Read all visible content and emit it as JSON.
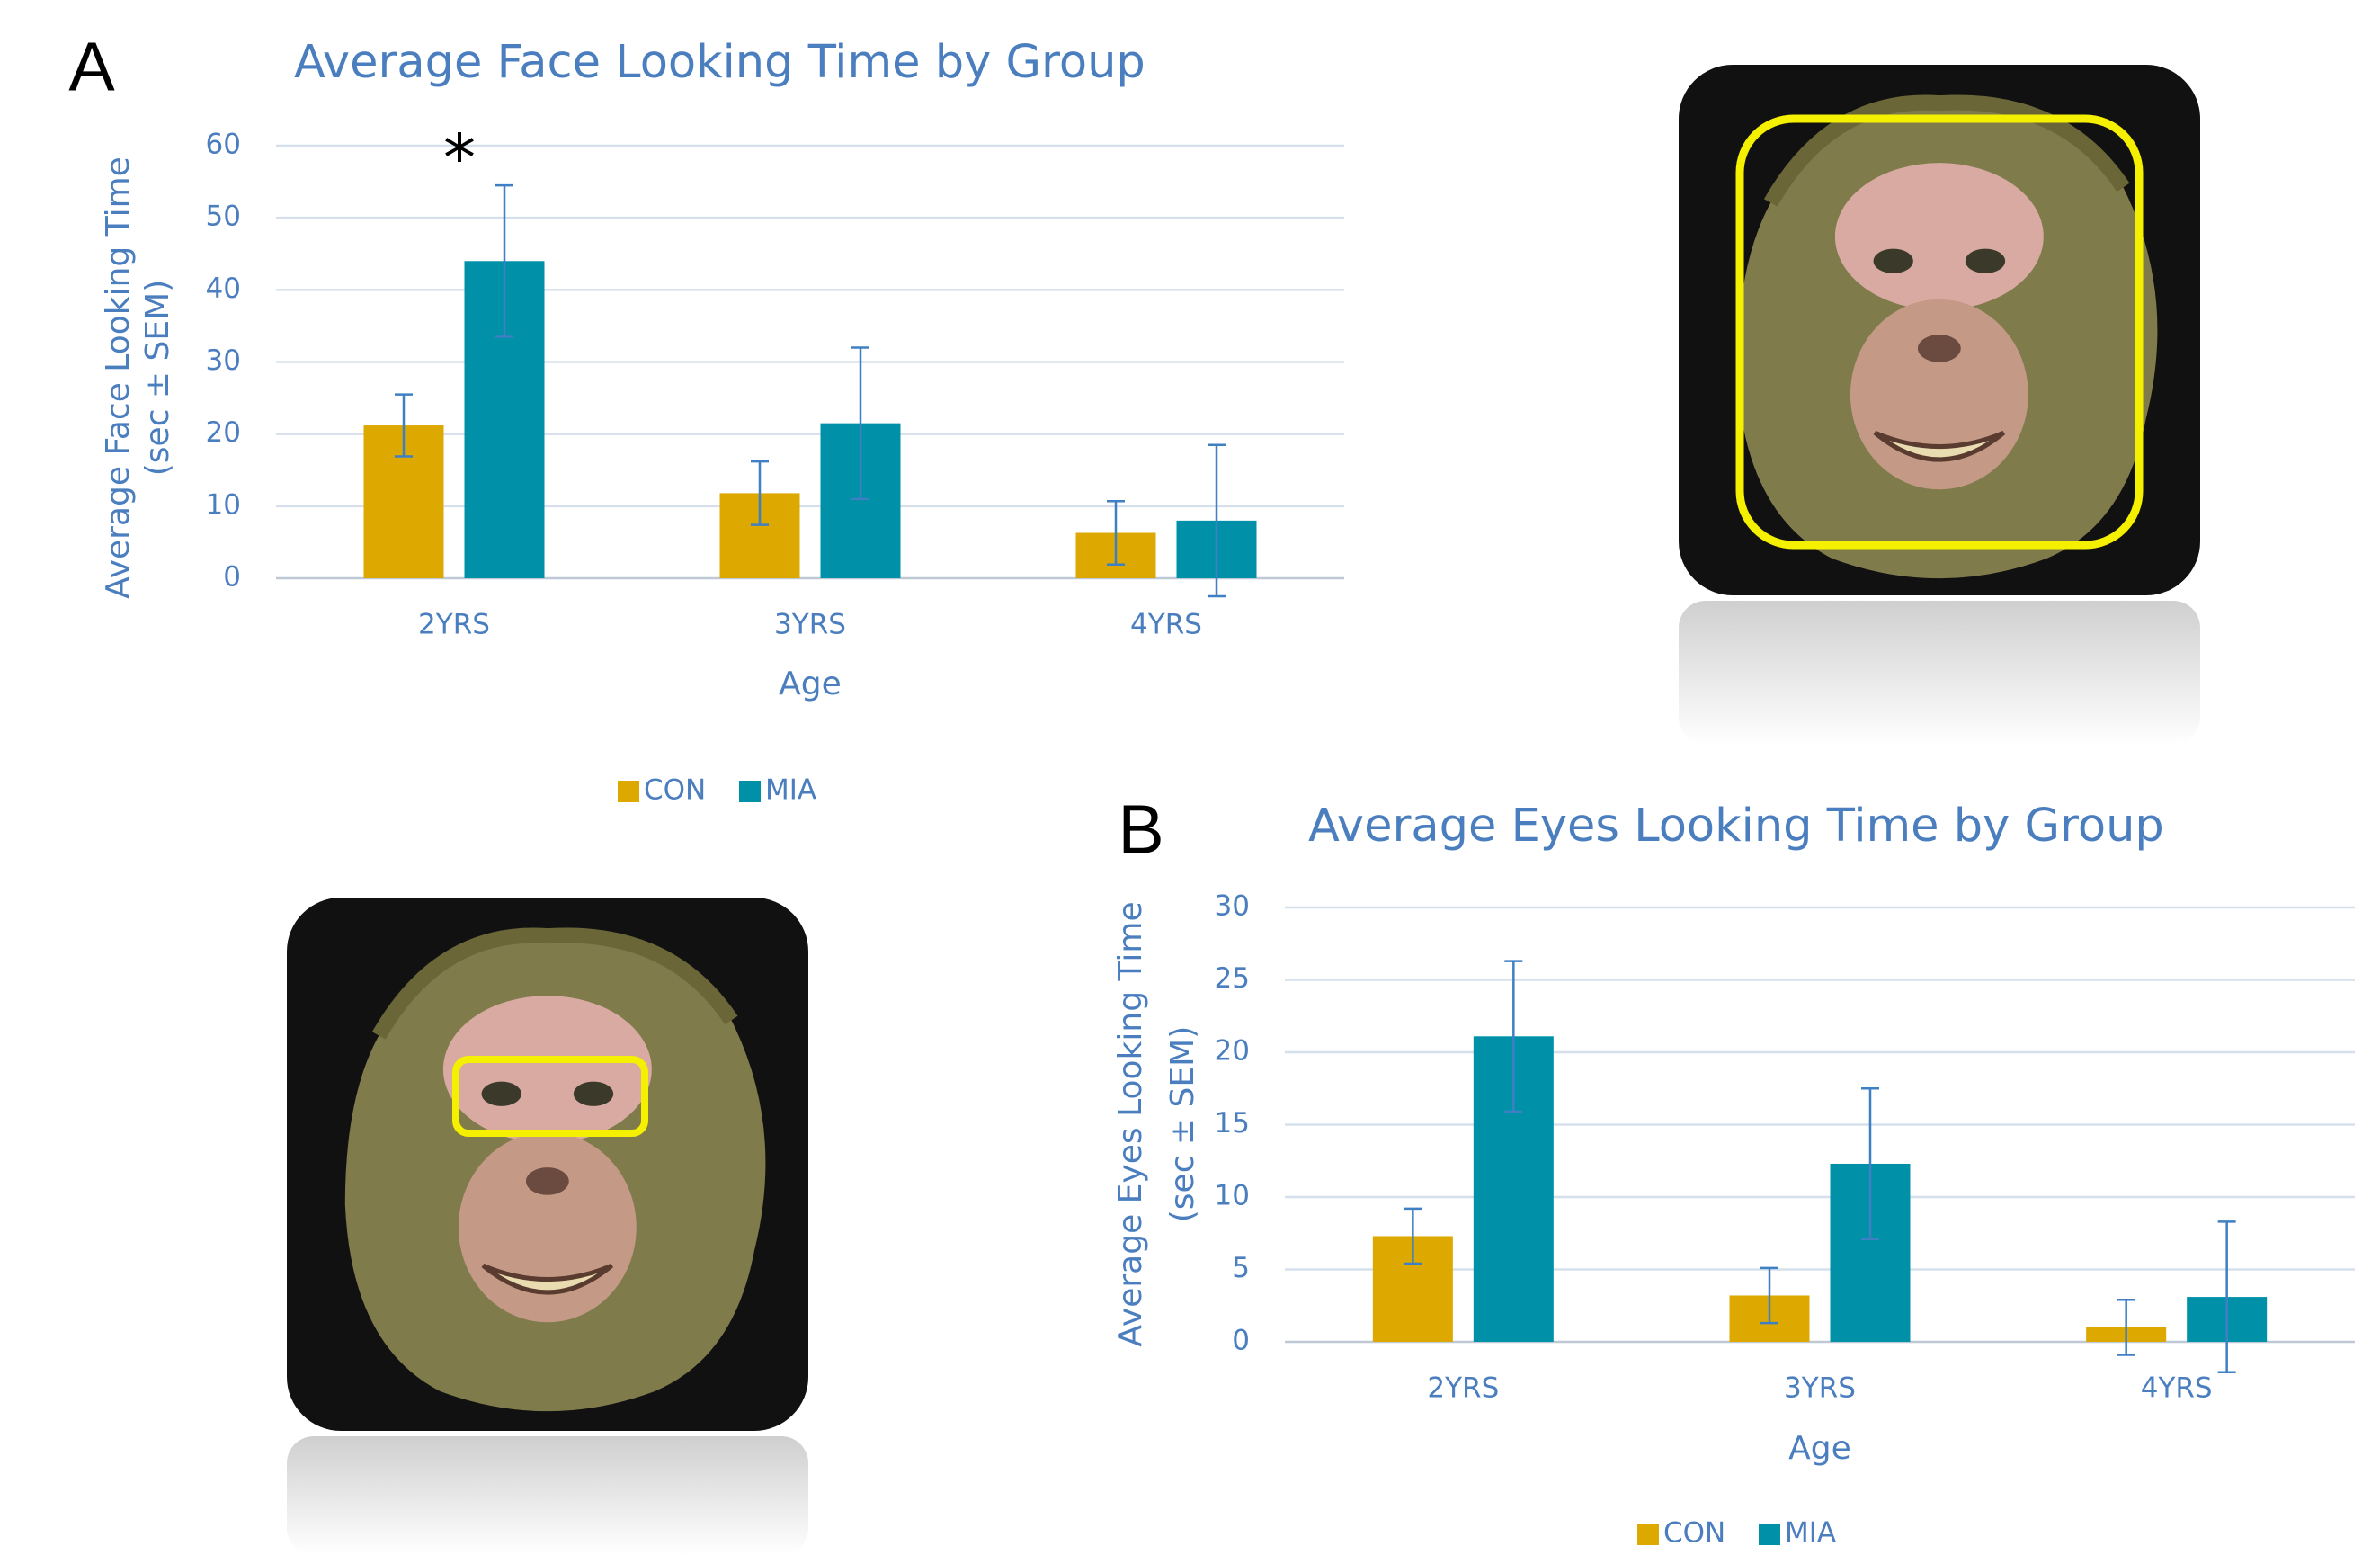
{
  "chart_data": [
    {
      "type": "bar",
      "panel_label": "A",
      "title": "Average Face Looking Time by Group",
      "y_label": [
        "Average Face Looking Time",
        "(sec ± SEM)"
      ],
      "x_label": "Age",
      "categories": [
        "2YRS",
        "3YRS",
        "4YRS"
      ],
      "series": [
        {
          "name": "CON",
          "color": "#dda800",
          "values": [
            21.2,
            11.8,
            6.3
          ],
          "errors": [
            4.3,
            4.4,
            4.4
          ]
        },
        {
          "name": "MIA",
          "color": "#0091a8",
          "values": [
            44,
            21.5,
            8
          ],
          "errors": [
            10.5,
            10.5,
            10.5
          ],
          "markers": [
            "*",
            null,
            null
          ]
        }
      ],
      "ylim": [
        0,
        60
      ],
      "yticks": [
        0,
        10,
        20,
        30,
        40,
        50,
        60
      ],
      "grid": true
    },
    {
      "type": "bar",
      "panel_label": "B",
      "title": "Average Eyes Looking Time by Group",
      "y_label": [
        "Average Eyes Looking Time",
        "(sec ± SEM)"
      ],
      "x_label": "Age",
      "categories": [
        "2YRS",
        "3YRS",
        "4YRS"
      ],
      "series": [
        {
          "name": "CON",
          "color": "#dda800",
          "values": [
            7.3,
            3.2,
            1.0
          ],
          "errors": [
            1.9,
            1.9,
            1.9
          ]
        },
        {
          "name": "MIA",
          "color": "#0091a8",
          "values": [
            21.1,
            12.3,
            3.1
          ],
          "errors": [
            5.2,
            5.2,
            5.2
          ]
        }
      ],
      "ylim": [
        0,
        30
      ],
      "yticks": [
        0,
        5,
        10,
        15,
        20,
        25,
        30
      ],
      "grid": true
    }
  ]
}
